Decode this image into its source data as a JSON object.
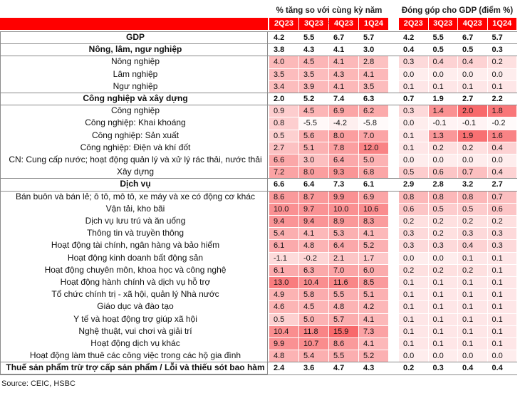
{
  "header": {
    "growth_title": "% tăng so với cùng kỳ năm trước",
    "contribution_title": "Đóng góp cho GDP (điểm %)",
    "growth_quarters": [
      "2Q23",
      "3Q23",
      "4Q23",
      "1Q24"
    ],
    "contribution_quarters": [
      "2Q23",
      "3Q23",
      "4Q23",
      "1Q24"
    ]
  },
  "rows": [
    {
      "label": "GDP",
      "bold": true,
      "growth": [
        "4.2",
        "5.5",
        "6.7",
        "5.7"
      ],
      "contribution": [
        "4.2",
        "5.5",
        "6.7",
        "5.7"
      ]
    },
    {
      "label": "Nông, lâm, ngư nghiệp",
      "bold": true,
      "growth": [
        "3.8",
        "4.3",
        "4.1",
        "3.0"
      ],
      "contribution": [
        "0.4",
        "0.5",
        "0.5",
        "0.3"
      ]
    },
    {
      "label": "Nông nghiệp",
      "growth": [
        "4.0",
        "4.5",
        "4.1",
        "2.8"
      ],
      "contribution": [
        "0.3",
        "0.4",
        "0.4",
        "0.2"
      ]
    },
    {
      "label": "Lâm nghiệp",
      "growth": [
        "3.5",
        "3.5",
        "4.3",
        "4.1"
      ],
      "contribution": [
        "0.0",
        "0.0",
        "0.0",
        "0.0"
      ]
    },
    {
      "label": "Ngư nghiệp",
      "growth": [
        "3.4",
        "3.9",
        "4.1",
        "3.5"
      ],
      "contribution": [
        "0.1",
        "0.1",
        "0.1",
        "0.1"
      ]
    },
    {
      "label": "Công nghiệp và xây dựng",
      "bold": true,
      "growth": [
        "2.0",
        "5.2",
        "7.4",
        "6.3"
      ],
      "contribution": [
        "0.7",
        "1.9",
        "2.7",
        "2.2"
      ]
    },
    {
      "label": "Công nghiệp",
      "growth": [
        "0.9",
        "4.5",
        "6.9",
        "6.2"
      ],
      "contribution": [
        "0.3",
        "1.4",
        "2.0",
        "1.8"
      ]
    },
    {
      "label": "Công nghiệp: Khai khoáng",
      "growth": [
        "0.8",
        "-5.5",
        "-4.2",
        "-5.8"
      ],
      "contribution": [
        "0.0",
        "-0.1",
        "-0.1",
        "-0.2"
      ]
    },
    {
      "label": "Công nghiệp: Sản xuất",
      "growth": [
        "0.5",
        "5.6",
        "8.0",
        "7.0"
      ],
      "contribution": [
        "0.1",
        "1.3",
        "1.9",
        "1.6"
      ]
    },
    {
      "label": "Công nghiệp: Điện và khí đốt",
      "growth": [
        "2.7",
        "5.1",
        "7.8",
        "12.0"
      ],
      "contribution": [
        "0.1",
        "0.2",
        "0.2",
        "0.4"
      ]
    },
    {
      "label": "CN: Cung cấp nước; hoạt động quản lý và xử lý rác thải, nước thải",
      "growth": [
        "6.6",
        "3.0",
        "6.4",
        "5.0"
      ],
      "contribution": [
        "0.0",
        "0.0",
        "0.0",
        "0.0"
      ]
    },
    {
      "label": "Xây dựng",
      "growth": [
        "7.2",
        "8.0",
        "9.3",
        "6.8"
      ],
      "contribution": [
        "0.5",
        "0.6",
        "0.7",
        "0.4"
      ]
    },
    {
      "label": "Dịch vụ",
      "bold": true,
      "growth": [
        "6.6",
        "6.4",
        "7.3",
        "6.1"
      ],
      "contribution": [
        "2.9",
        "2.8",
        "3.2",
        "2.7"
      ]
    },
    {
      "label": "Bán buôn và bán lẻ; ô tô, mô tô, xe máy và xe có động cơ khác",
      "growth": [
        "8.6",
        "8.7",
        "9.9",
        "6.9"
      ],
      "contribution": [
        "0.8",
        "0.8",
        "0.8",
        "0.7"
      ]
    },
    {
      "label": "Vận tải, kho bãi",
      "growth": [
        "10.0",
        "9.7",
        "10.0",
        "10.6"
      ],
      "contribution": [
        "0.6",
        "0.5",
        "0.5",
        "0.6"
      ]
    },
    {
      "label": "Dịch vụ lưu trú và ăn uống",
      "growth": [
        "9.4",
        "9.4",
        "8.9",
        "8.3"
      ],
      "contribution": [
        "0.2",
        "0.2",
        "0.2",
        "0.2"
      ]
    },
    {
      "label": "Thông tin và truyền thông",
      "growth": [
        "5.4",
        "4.1",
        "5.3",
        "4.1"
      ],
      "contribution": [
        "0.3",
        "0.2",
        "0.3",
        "0.3"
      ]
    },
    {
      "label": "Hoạt động tài chính, ngân hàng và bảo hiểm",
      "growth": [
        "6.1",
        "4.8",
        "6.4",
        "5.2"
      ],
      "contribution": [
        "0.3",
        "0.3",
        "0.4",
        "0.3"
      ]
    },
    {
      "label": "Hoạt động kinh doanh bất động sản",
      "growth": [
        "-1.1",
        "-0.2",
        "2.1",
        "1.7"
      ],
      "contribution": [
        "0.0",
        "0.0",
        "0.1",
        "0.1"
      ]
    },
    {
      "label": "Hoạt động chuyên môn, khoa học và công nghệ",
      "growth": [
        "6.1",
        "6.3",
        "7.0",
        "6.0"
      ],
      "contribution": [
        "0.2",
        "0.2",
        "0.2",
        "0.1"
      ]
    },
    {
      "label": "Hoạt động hành chính và dịch vụ hỗ trợ",
      "growth": [
        "13.0",
        "10.4",
        "11.6",
        "8.5"
      ],
      "contribution": [
        "0.1",
        "0.1",
        "0.1",
        "0.1"
      ]
    },
    {
      "label": "Tổ chức chính trị - xã hội, quản lý Nhà nước",
      "growth": [
        "4.9",
        "5.8",
        "5.5",
        "5.1"
      ],
      "contribution": [
        "0.1",
        "0.1",
        "0.1",
        "0.1"
      ]
    },
    {
      "label": "Giáo dục và đào tạo",
      "growth": [
        "4.6",
        "4.5",
        "4.8",
        "4.2"
      ],
      "contribution": [
        "0.1",
        "0.1",
        "0.1",
        "0.1"
      ]
    },
    {
      "label": "Y tế và hoạt động trợ giúp xã hội",
      "growth": [
        "0.5",
        "5.0",
        "5.7",
        "4.1"
      ],
      "contribution": [
        "0.1",
        "0.1",
        "0.1",
        "0.1"
      ]
    },
    {
      "label": "Nghệ thuật, vui chơi và giải trí",
      "growth": [
        "10.4",
        "11.8",
        "15.9",
        "7.3"
      ],
      "contribution": [
        "0.1",
        "0.1",
        "0.1",
        "0.1"
      ]
    },
    {
      "label": "Hoạt động dịch vụ khác",
      "growth": [
        "9.9",
        "10.7",
        "8.6",
        "4.1"
      ],
      "contribution": [
        "0.1",
        "0.1",
        "0.1",
        "0.1"
      ]
    },
    {
      "label": "Hoạt động làm thuê các công việc trong các hộ gia đình",
      "growth": [
        "4.8",
        "5.4",
        "5.5",
        "5.2"
      ],
      "contribution": [
        "0.0",
        "0.0",
        "0.0",
        "0.0"
      ]
    },
    {
      "label": "Thuế sản phẩm trừ trợ cấp sản phẩm / Lỗi và thiếu sót bao hàm",
      "bold": true,
      "growth": [
        "2.4",
        "3.6",
        "4.7",
        "4.3"
      ],
      "contribution": [
        "0.2",
        "0.3",
        "0.4",
        "0.4"
      ]
    }
  ],
  "source": "Source: CEIC, HSBC"
}
